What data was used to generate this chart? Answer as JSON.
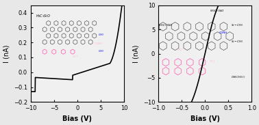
{
  "left_plot": {
    "xlim": [
      -10,
      10
    ],
    "ylim": [
      -0.2,
      0.45
    ],
    "xlabel": "Bias (V)",
    "ylabel": "I (nA)",
    "yticks": [
      -0.2,
      -0.1,
      0.0,
      0.1,
      0.2,
      0.3,
      0.4
    ],
    "xticks": [
      -10,
      -5,
      0,
      5,
      10
    ],
    "curve_color": "black",
    "curve_lw": 1.2
  },
  "right_plot": {
    "xlim": [
      -1.0,
      1.0
    ],
    "ylim": [
      -10,
      10
    ],
    "xlabel": "Bias (V)",
    "ylabel": "I (nA)",
    "yticks": [
      -10,
      -5,
      0,
      5,
      10
    ],
    "xticks": [
      -1.0,
      -0.5,
      0.0,
      0.5,
      1.0
    ],
    "curve_color": "black",
    "curve_lw": 1.2
  },
  "bg_color": "#e8e8e8",
  "panel_bg": "#f0f0f0",
  "label_fontsize": 7,
  "tick_fontsize": 6,
  "title_fontsize": 6
}
